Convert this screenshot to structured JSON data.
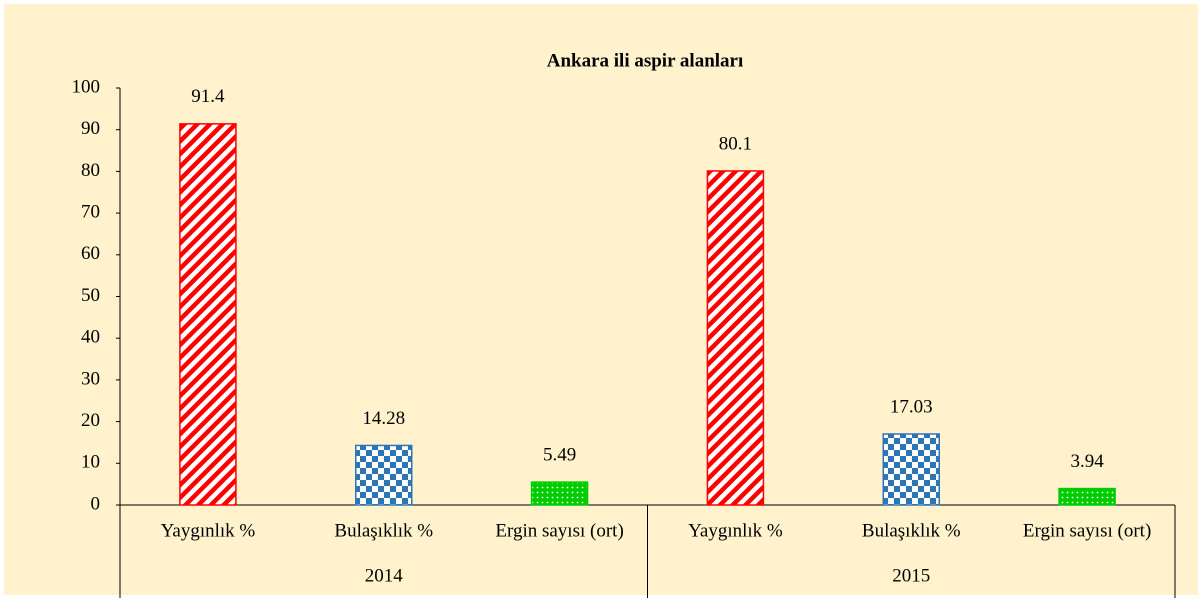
{
  "chart_data": {
    "type": "bar",
    "title": "Ankara ili aspir alanları",
    "categories": [
      "Yaygınlık %",
      "Bulaşıklık %",
      "Ergin sayısı (ort)",
      "Yaygınlık %",
      "Bulaşıklık %",
      "Ergin sayısı (ort)"
    ],
    "groups": [
      "2014",
      "2015"
    ],
    "values": [
      91.4,
      14.28,
      5.49,
      80.1,
      17.03,
      3.94
    ],
    "colors": [
      "#ff0000",
      "#2e75b6",
      "#00cc00",
      "#ff0000",
      "#2e75b6",
      "#00cc00"
    ],
    "ylim": [
      0,
      100
    ],
    "yticks": [
      0,
      10,
      20,
      30,
      40,
      50,
      60,
      70,
      80,
      90,
      100
    ],
    "grid": false
  }
}
